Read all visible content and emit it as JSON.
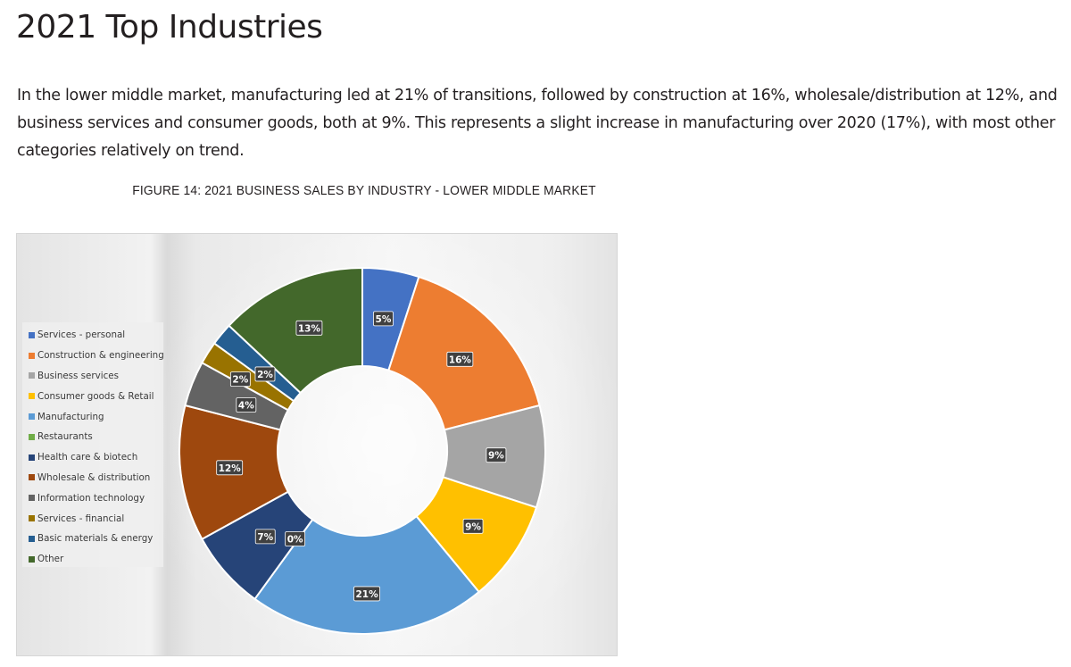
{
  "page": {
    "title": "2021 Top Industries",
    "intro": "In the lower middle market, manufacturing led at 21% of transitions, followed by construction at 16%, wholesale/distribution at 12%, and business services and consumer goods, both at 9%. This represents a slight increase in manufacturing over 2020 (17%), with most other categories relatively on trend."
  },
  "chart_data": {
    "type": "pie",
    "variant": "donut",
    "title": "FIGURE 14:  2021 BUSINESS SALES BY INDUSTRY - LOWER MIDDLE MARKET",
    "legend_position": "left",
    "series": [
      {
        "name": "Services - personal",
        "value": 5,
        "label": "5%",
        "color": "#4472c4"
      },
      {
        "name": "Construction & engineering",
        "value": 16,
        "label": "16%",
        "color": "#ed7d31"
      },
      {
        "name": "Business services",
        "value": 9,
        "label": "9%",
        "color": "#a5a5a5"
      },
      {
        "name": "Consumer goods & Retail",
        "value": 9,
        "label": "9%",
        "color": "#ffc000"
      },
      {
        "name": "Manufacturing",
        "value": 21,
        "label": "21%",
        "color": "#5b9bd5"
      },
      {
        "name": "Restaurants",
        "value": 0,
        "label": "",
        "color": "#70ad47"
      },
      {
        "name": "Health care & biotech",
        "value": 7,
        "label": "7%",
        "color": "#264478"
      },
      {
        "name": "Wholesale & distribution",
        "value": 12,
        "label": "12%",
        "color": "#9e480e"
      },
      {
        "name": "Information technology",
        "value": 4,
        "label": "4%",
        "color": "#636363"
      },
      {
        "name": "Services - financial",
        "value": 2,
        "label": "2%",
        "color": "#997300"
      },
      {
        "name": "Basic materials & energy",
        "value": 2,
        "label": "2%",
        "color": "#255e91"
      },
      {
        "name": "Other",
        "value": 13,
        "label": "13%",
        "color": "#43682b"
      }
    ],
    "extra_labels": [
      {
        "text": "0%",
        "note": "zero-value slice label between Health care & biotech and Manufacturing"
      }
    ]
  }
}
